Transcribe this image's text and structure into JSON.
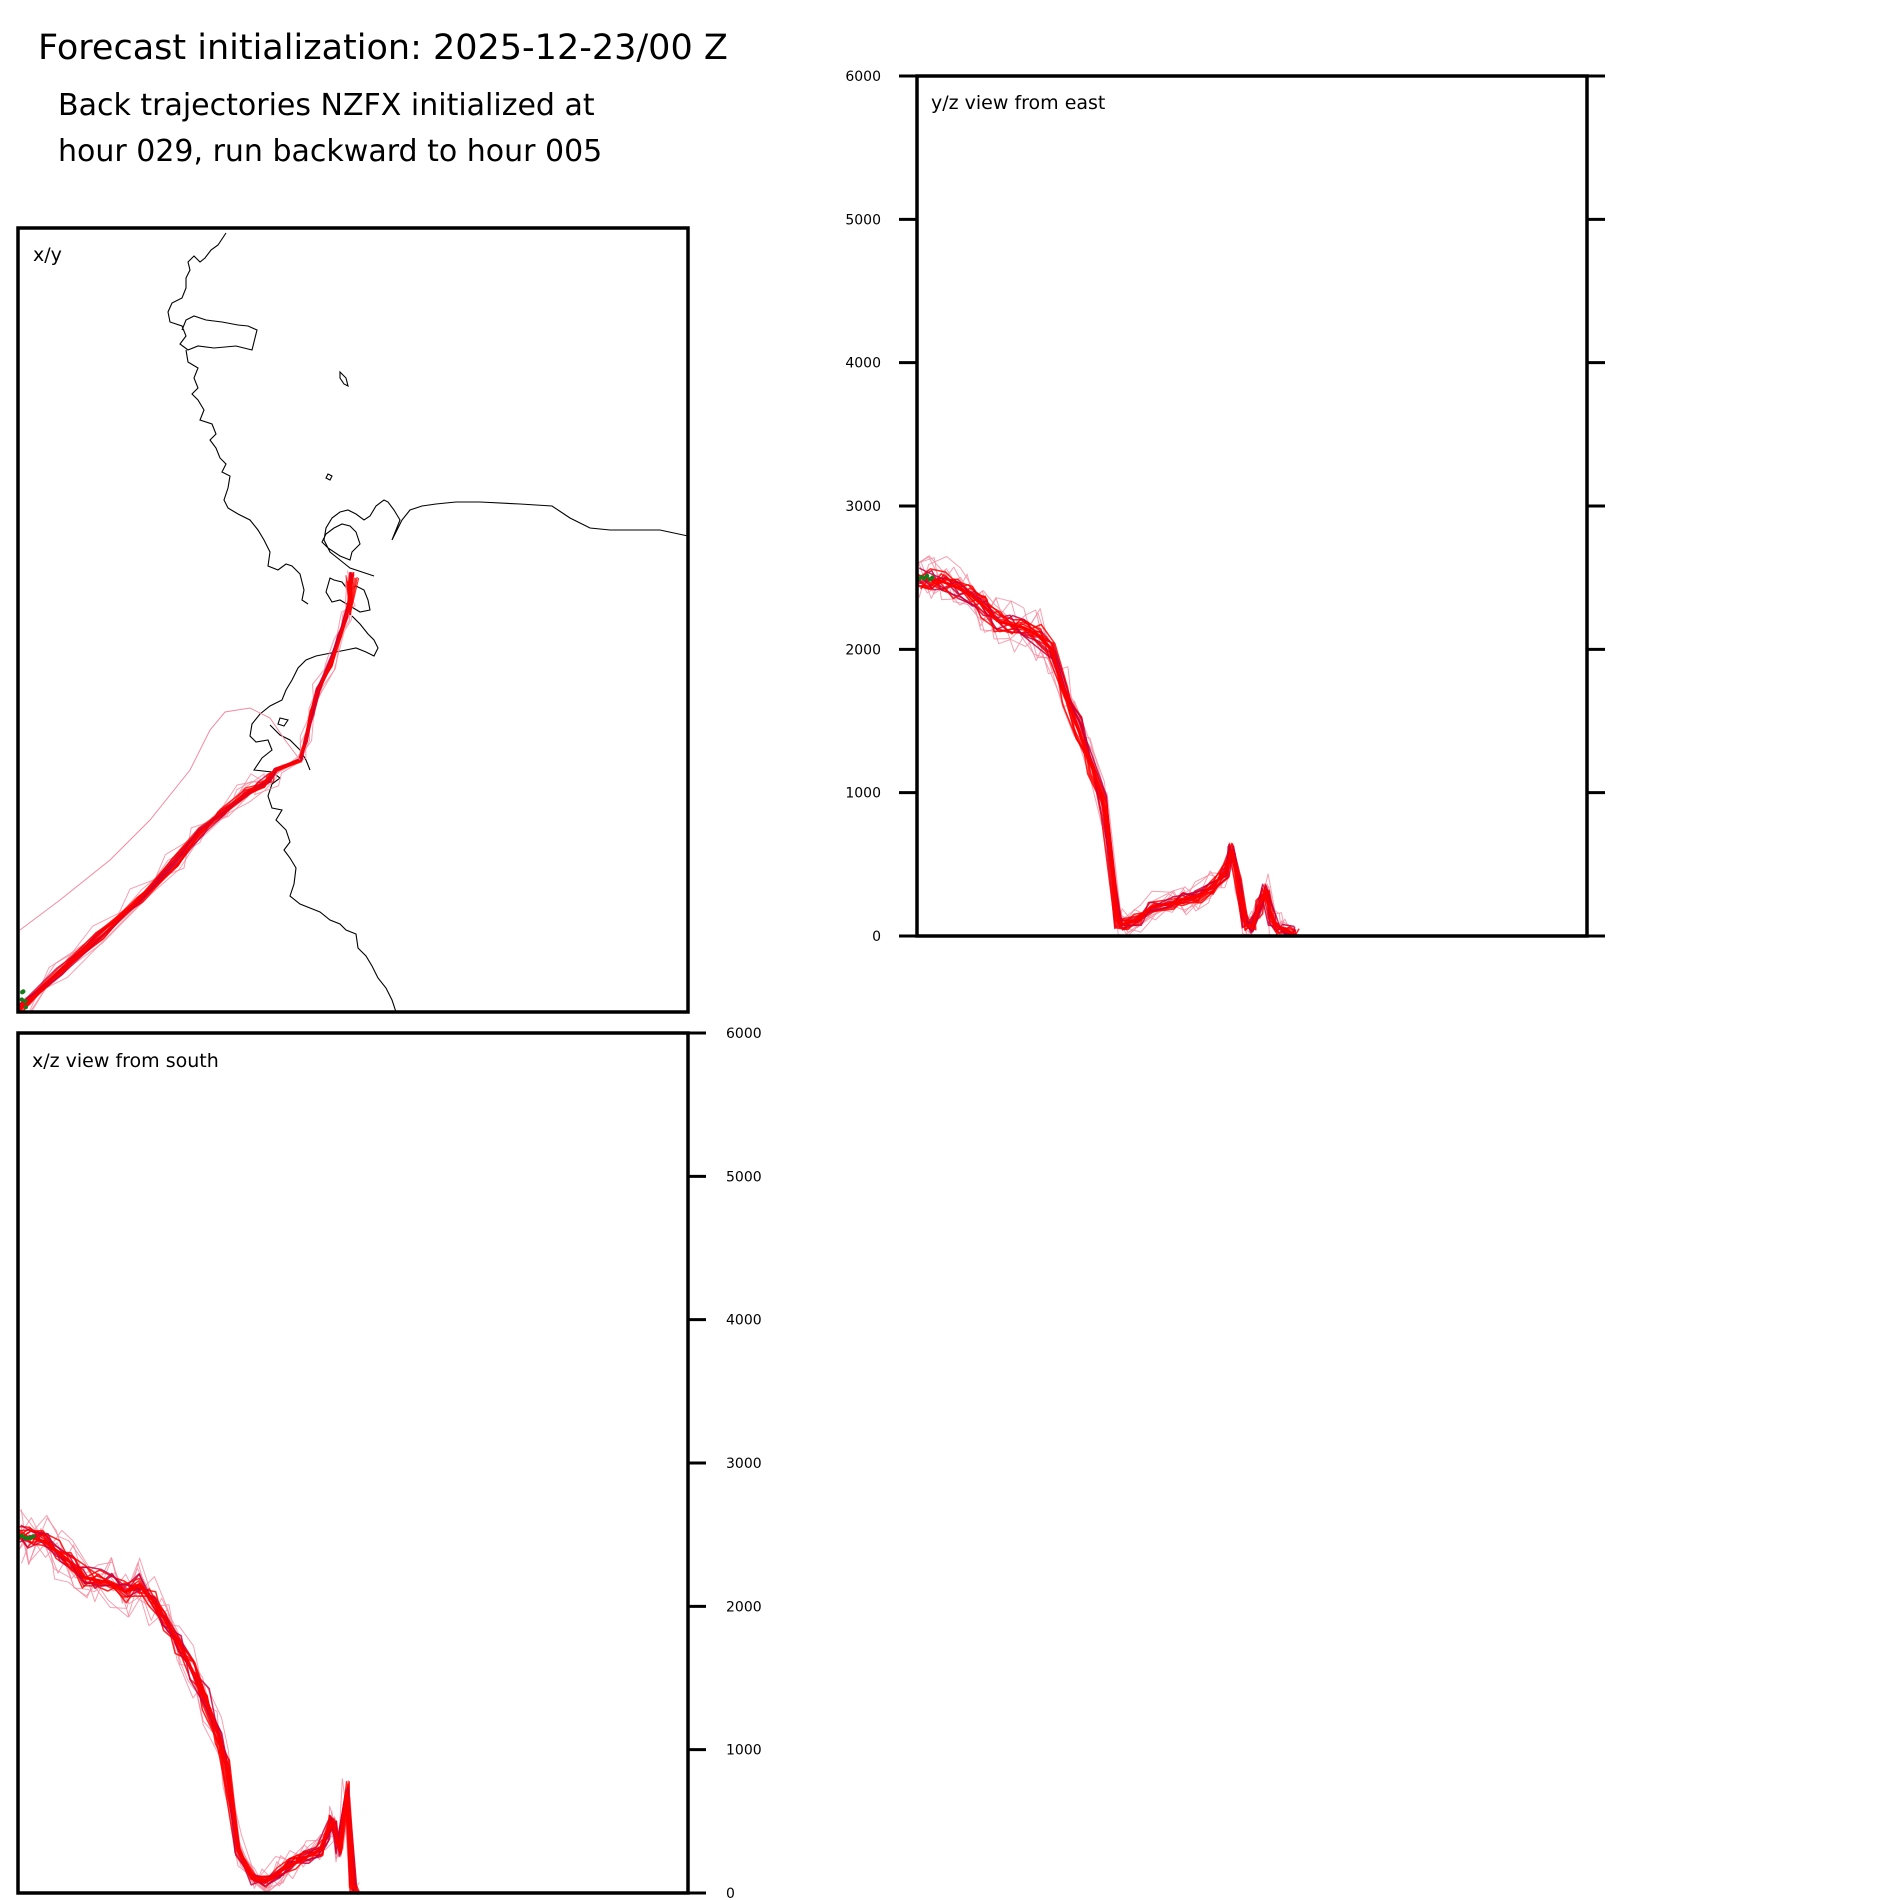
{
  "header": {
    "title": "Forecast initialization: 2025-12-23/00 Z",
    "subtitle_line1": "Back trajectories NZFX initialized at",
    "subtitle_line2": "hour 029, run backward to hour 005"
  },
  "colors": {
    "trajectory": "#ff0000",
    "trajectory_light": "#f48a9e",
    "trajectory_dark": "#c8003c",
    "start_marker": "#1a7a1a",
    "coastline": "#000000"
  },
  "chart_data": [
    {
      "type": "line",
      "panel": "x/y",
      "panel_label": "x/y",
      "description_units": "map view",
      "grid": false
    },
    {
      "type": "line",
      "panel": "y/z",
      "panel_label": "y/z view from east",
      "ylim": [
        0,
        6000
      ],
      "yticks": [
        0,
        1000,
        2000,
        3000,
        4000,
        5000,
        6000
      ],
      "ytick_labels": [
        "0",
        "1000",
        "2000",
        "3000",
        "4000",
        "5000",
        "6000"
      ],
      "grid": false,
      "main_track": {
        "x": [
          0,
          0.02,
          0.04,
          0.06,
          0.08,
          0.1,
          0.12,
          0.14,
          0.16,
          0.18,
          0.2,
          0.22,
          0.24,
          0.26,
          0.28,
          0.3,
          0.31,
          0.33,
          0.35,
          0.38,
          0.4,
          0.42,
          0.44,
          0.46,
          0.47,
          0.48,
          0.49,
          0.5,
          0.51,
          0.52,
          0.53,
          0.54,
          0.55,
          0.56,
          0.565
        ],
        "y": [
          2500,
          2490,
          2470,
          2430,
          2380,
          2300,
          2200,
          2170,
          2150,
          2100,
          2000,
          1700,
          1450,
          1200,
          900,
          100,
          80,
          120,
          200,
          230,
          260,
          280,
          340,
          450,
          600,
          350,
          80,
          60,
          200,
          320,
          120,
          60,
          40,
          20,
          5
        ]
      }
    },
    {
      "type": "line",
      "panel": "x/z",
      "panel_label": "x/z view from south",
      "ylim": [
        0,
        6000
      ],
      "yticks": [
        0,
        1000,
        2000,
        3000,
        4000,
        5000,
        6000
      ],
      "ytick_labels": [
        "0",
        "1000",
        "2000",
        "3000",
        "4000",
        "5000",
        "6000"
      ],
      "grid": false,
      "main_track": {
        "x": [
          0,
          0.02,
          0.04,
          0.06,
          0.08,
          0.1,
          0.12,
          0.14,
          0.16,
          0.18,
          0.2,
          0.22,
          0.24,
          0.26,
          0.28,
          0.3,
          0.31,
          0.33,
          0.35,
          0.37,
          0.39,
          0.41,
          0.43,
          0.45,
          0.46,
          0.47,
          0.48,
          0.49,
          0.5,
          0.505
        ],
        "y": [
          2490,
          2480,
          2450,
          2380,
          2300,
          2200,
          2180,
          2160,
          2100,
          2150,
          2050,
          1900,
          1750,
          1550,
          1350,
          1100,
          900,
          300,
          100,
          80,
          150,
          200,
          250,
          300,
          400,
          500,
          300,
          700,
          60,
          5
        ]
      }
    }
  ]
}
